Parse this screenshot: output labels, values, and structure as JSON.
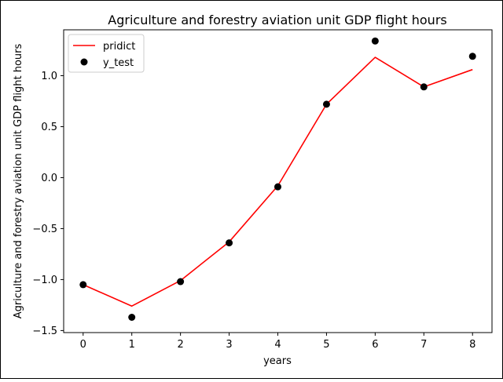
{
  "chart_data": {
    "type": "line",
    "title": "Agriculture and forestry aviation unit GDP flight hours",
    "xlabel": "years",
    "ylabel": "Agriculture and forestry aviation unit GDP flight hours",
    "xlim": [
      -0.4,
      8.4
    ],
    "ylim": [
      -1.52,
      1.45
    ],
    "x_ticks": [
      0,
      1,
      2,
      3,
      4,
      5,
      6,
      7,
      8
    ],
    "y_ticks": [
      1.0,
      0.5,
      0.0,
      -0.5,
      -1.0,
      -1.5
    ],
    "y_tick_labels": [
      "1.0",
      "0.5",
      "0.0",
      "−0.5",
      "−1.0",
      "−1.5"
    ],
    "grid": false,
    "legend_position": "upper-left",
    "series": [
      {
        "name": "pridict",
        "kind": "line",
        "color": "#ff0000",
        "x": [
          0,
          1,
          2,
          3,
          4,
          5,
          6,
          7,
          8
        ],
        "y": [
          -1.05,
          -1.26,
          -1.01,
          -0.63,
          -0.08,
          0.72,
          1.18,
          0.89,
          1.06
        ]
      },
      {
        "name": "y_test",
        "kind": "scatter",
        "color": "#000000",
        "x": [
          0,
          1,
          2,
          3,
          4,
          5,
          6,
          7,
          8
        ],
        "y": [
          -1.05,
          -1.37,
          -1.02,
          -0.64,
          -0.09,
          0.72,
          1.34,
          0.89,
          1.19
        ]
      }
    ]
  }
}
